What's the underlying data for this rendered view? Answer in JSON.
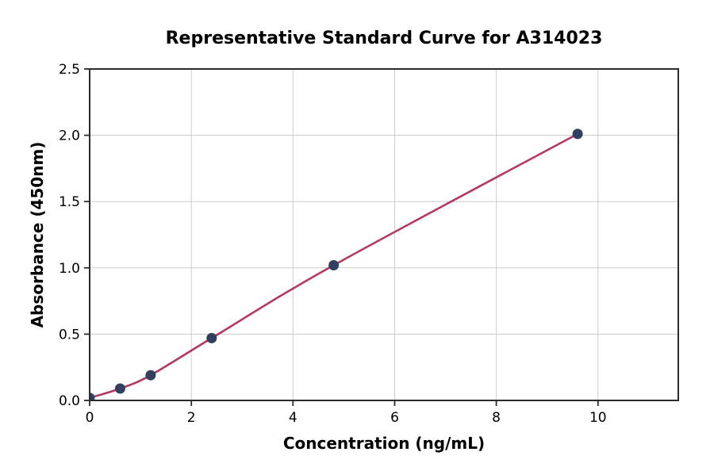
{
  "chart_data": {
    "type": "line",
    "title": "Representative Standard Curve for A314023",
    "xlabel": "Concentration (ng/mL)",
    "ylabel": "Absorbance (450nm)",
    "series": [
      {
        "name": "standard-curve",
        "marker": "circle",
        "curve_style": "smooth-fit",
        "points": [
          {
            "x": 0,
            "y": 0.02
          },
          {
            "x": 0.6,
            "y": 0.09
          },
          {
            "x": 1.2,
            "y": 0.19
          },
          {
            "x": 2.4,
            "y": 0.47
          },
          {
            "x": 4.8,
            "y": 1.02
          },
          {
            "x": 9.6,
            "y": 2.01
          }
        ]
      }
    ],
    "xlim": [
      0,
      11.58
    ],
    "ylim": [
      0,
      2.5
    ],
    "xticks": {
      "values": [
        0,
        2,
        4,
        6,
        8,
        10
      ],
      "labels": [
        "0",
        "2",
        "4",
        "6",
        "8",
        "10"
      ]
    },
    "yticks": {
      "values": [
        0,
        0.5,
        1.0,
        1.5,
        2.0,
        2.5
      ],
      "labels": [
        "0.0",
        "0.5",
        "1.0",
        "1.5",
        "2.0",
        "2.5"
      ]
    },
    "grid": true,
    "legend": null,
    "colors": {
      "line": "#b5395f",
      "marker": "#31405e",
      "grid": "#cccccc",
      "spine": "#2b2b2b",
      "text": "#000000",
      "background": "#ffffff"
    }
  }
}
